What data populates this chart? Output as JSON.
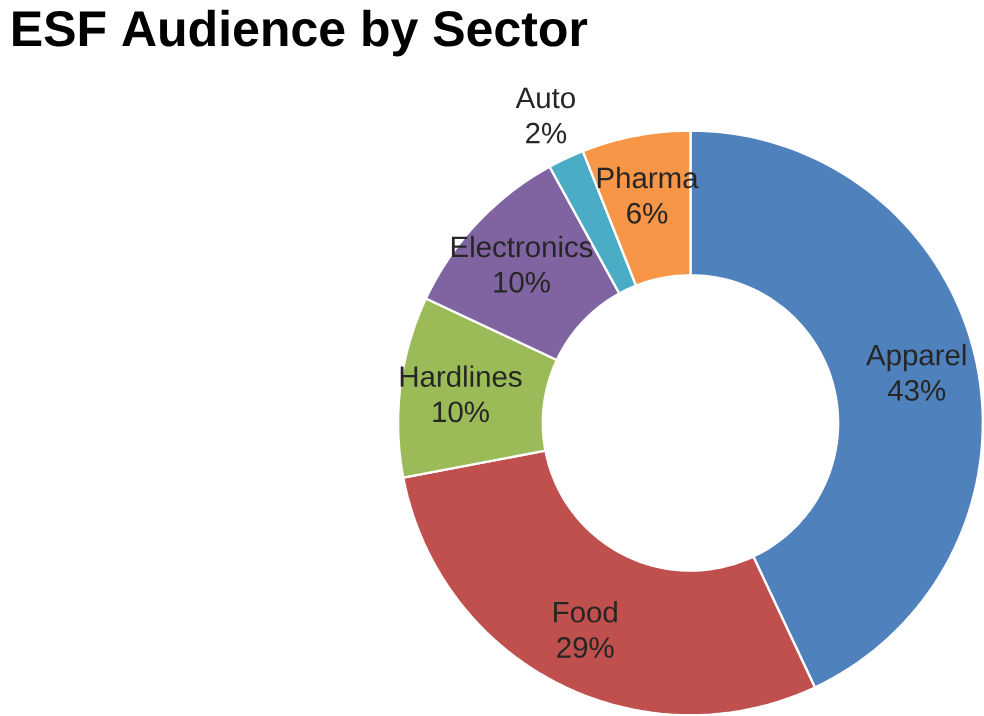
{
  "chart_data": {
    "type": "donut",
    "title": "ESF Audience by Sector",
    "categories": [
      "Apparel",
      "Food",
      "Hardlines",
      "Electronics",
      "Auto",
      "Pharma"
    ],
    "values": [
      43,
      29,
      10,
      10,
      2,
      6
    ],
    "value_labels": [
      "43%",
      "29%",
      "10%",
      "10%",
      "2%",
      "6%"
    ],
    "colors": [
      "#4f81bd",
      "#c0504d",
      "#9bbb59",
      "#8064a2",
      "#4bacc6",
      "#f79646"
    ]
  }
}
